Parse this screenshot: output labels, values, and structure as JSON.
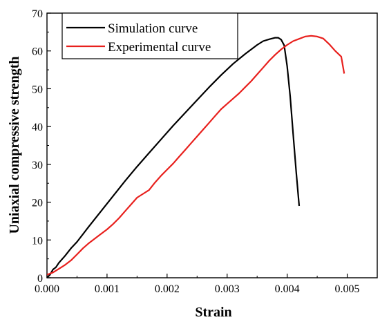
{
  "chart_data": {
    "type": "line",
    "title": "",
    "xlabel": "Strain",
    "ylabel": "Uniaxial compressive strength",
    "xlim": [
      0,
      0.0055
    ],
    "ylim": [
      0,
      70
    ],
    "xticks": [
      0.0,
      0.001,
      0.002,
      0.003,
      0.004,
      0.005
    ],
    "xtick_labels": [
      "0.000",
      "0.001",
      "0.002",
      "0.003",
      "0.004",
      "0.005"
    ],
    "yticks": [
      0,
      10,
      20,
      30,
      40,
      50,
      60,
      70
    ],
    "ytick_labels": [
      "0",
      "10",
      "20",
      "30",
      "40",
      "50",
      "60",
      "70"
    ],
    "grid": false,
    "legend_position": "top-left",
    "series": [
      {
        "name": "Simulation curve",
        "color": "#000000",
        "x": [
          0.0,
          5e-05,
          0.0001,
          0.00015,
          0.0002,
          0.0003,
          0.0004,
          0.0005,
          0.0007,
          0.0009,
          0.0011,
          0.0013,
          0.0015,
          0.0017,
          0.0019,
          0.0021,
          0.0023,
          0.0025,
          0.0027,
          0.0029,
          0.0031,
          0.0033,
          0.0035,
          0.0036,
          0.0037,
          0.0038,
          0.00385,
          0.0039,
          0.00395,
          0.004,
          0.00405,
          0.0041,
          0.00415,
          0.0042
        ],
        "y": [
          0.0,
          0.8,
          2.2,
          2.8,
          4.0,
          5.8,
          7.8,
          9.5,
          13.6,
          17.6,
          21.6,
          25.6,
          29.4,
          33.0,
          36.6,
          40.2,
          43.6,
          47.0,
          50.4,
          53.6,
          56.6,
          59.2,
          61.6,
          62.6,
          63.1,
          63.5,
          63.5,
          63.0,
          61.5,
          56.0,
          48.0,
          38.0,
          28.0,
          19.0
        ]
      },
      {
        "name": "Experimental curve",
        "color": "#e8201d",
        "x": [
          0.0,
          0.0001,
          0.0002,
          0.0003,
          0.0004,
          0.0005,
          0.0006,
          0.0007,
          0.0008,
          0.0009,
          0.001,
          0.0011,
          0.0012,
          0.0013,
          0.0014,
          0.0015,
          0.0016,
          0.0017,
          0.0018,
          0.0019,
          0.002,
          0.0021,
          0.0022,
          0.0023,
          0.0024,
          0.0025,
          0.0026,
          0.0027,
          0.0028,
          0.0029,
          0.003,
          0.0031,
          0.0032,
          0.0033,
          0.0034,
          0.0035,
          0.0036,
          0.0037,
          0.0038,
          0.0039,
          0.004,
          0.0041,
          0.0042,
          0.0043,
          0.0044,
          0.0045,
          0.0046,
          0.0047,
          0.0048,
          0.0049,
          0.00495
        ],
        "y": [
          0.8,
          1.4,
          2.4,
          3.4,
          4.6,
          6.2,
          7.8,
          9.2,
          10.4,
          11.6,
          12.8,
          14.2,
          15.8,
          17.6,
          19.4,
          21.2,
          22.2,
          23.2,
          25.2,
          27.0,
          28.6,
          30.2,
          32.0,
          33.8,
          35.6,
          37.4,
          39.2,
          41.0,
          42.8,
          44.6,
          46.0,
          47.4,
          48.8,
          50.4,
          52.0,
          53.8,
          55.6,
          57.4,
          59.0,
          60.4,
          61.6,
          62.6,
          63.2,
          63.8,
          64.0,
          63.8,
          63.3,
          61.8,
          60.0,
          58.5,
          54.0
        ]
      }
    ]
  }
}
